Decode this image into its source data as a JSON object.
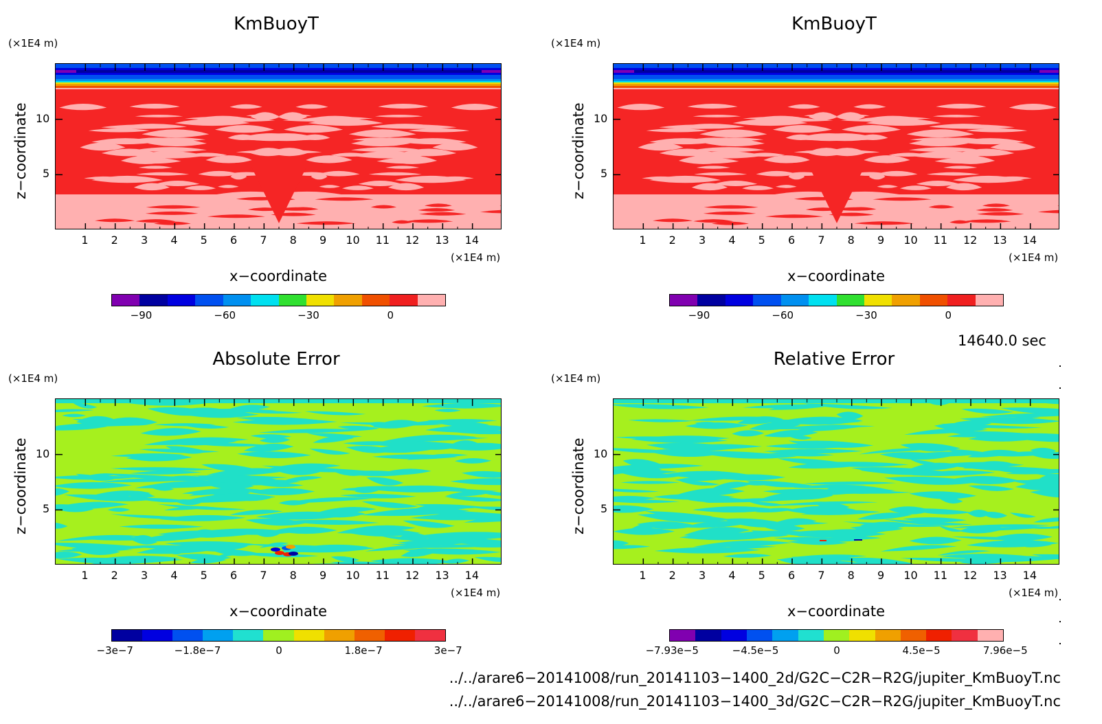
{
  "panels": [
    {
      "id": "p1",
      "title": "KmBuoyT",
      "y_unit": "(×1E4 m)",
      "x_unit": "(×1E4 m)",
      "xlabel": "x−coordinate",
      "ylabel": "z−coordinate",
      "x_ticks": [
        "1",
        "2",
        "3",
        "4",
        "5",
        "6",
        "7",
        "8",
        "9",
        "10",
        "11",
        "12",
        "13",
        "14"
      ],
      "y_ticks": [
        "5",
        "10"
      ],
      "colorbar_colors": [
        "#8000b0",
        "#0000a0",
        "#0000e0",
        "#0050f0",
        "#0090f0",
        "#00e0f0",
        "#30e030",
        "#f0e000",
        "#f0a000",
        "#f05000",
        "#f02020",
        "#ffb0b0"
      ],
      "colorbar_labels": [
        "−90",
        "−60",
        "−30",
        "0"
      ],
      "kind": "field"
    },
    {
      "id": "p2",
      "title": "KmBuoyT",
      "y_unit": "(×1E4 m)",
      "x_unit": "(×1E4 m)",
      "xlabel": "x−coordinate",
      "ylabel": "z−coordinate",
      "x_ticks": [
        "1",
        "2",
        "3",
        "4",
        "5",
        "6",
        "7",
        "8",
        "9",
        "10",
        "11",
        "12",
        "13",
        "14"
      ],
      "y_ticks": [
        "5",
        "10"
      ],
      "colorbar_colors": [
        "#8000b0",
        "#0000a0",
        "#0000e0",
        "#0050f0",
        "#0090f0",
        "#00e0f0",
        "#30e030",
        "#f0e000",
        "#f0a000",
        "#f05000",
        "#f02020",
        "#ffb0b0"
      ],
      "colorbar_labels": [
        "−90",
        "−60",
        "−30",
        "0"
      ],
      "kind": "field"
    },
    {
      "id": "p3",
      "title": "Absolute Error",
      "y_unit": "(×1E4 m)",
      "x_unit": "(×1E4 m)",
      "xlabel": "x−coordinate",
      "ylabel": "z−coordinate",
      "x_ticks": [
        "1",
        "2",
        "3",
        "4",
        "5",
        "6",
        "7",
        "8",
        "9",
        "10",
        "11",
        "12",
        "13",
        "14"
      ],
      "y_ticks": [
        "5",
        "10"
      ],
      "colorbar_colors": [
        "#0000a0",
        "#0000e0",
        "#0050f0",
        "#00a0f0",
        "#20e0d0",
        "#a0f020",
        "#f0e000",
        "#f0a000",
        "#f06000",
        "#f02000",
        "#f03040"
      ],
      "colorbar_labels": [
        "−3e−7",
        "−1.8e−7",
        "0",
        "1.8e−7",
        "3e−7"
      ],
      "kind": "error"
    },
    {
      "id": "p4",
      "title": "Relative Error",
      "y_unit": "(×1E4 m)",
      "x_unit": "(×1E4 m)",
      "xlabel": "x−coordinate",
      "ylabel": "z−coordinate",
      "x_ticks": [
        "1",
        "2",
        "3",
        "4",
        "5",
        "6",
        "7",
        "8",
        "9",
        "10",
        "11",
        "12",
        "13",
        "14"
      ],
      "y_ticks": [
        "5",
        "10"
      ],
      "colorbar_colors": [
        "#8000b0",
        "#0000a0",
        "#0000e0",
        "#0050f0",
        "#00a0f0",
        "#20e0d0",
        "#a0f020",
        "#f0e000",
        "#f0a000",
        "#f06000",
        "#f02000",
        "#f03040",
        "#ffb0b0"
      ],
      "colorbar_labels": [
        "−7.93e−5",
        "−4.5e−5",
        "0",
        "4.5e−5",
        "7.96e−5"
      ],
      "kind": "error"
    }
  ],
  "time_label": "14640.0 sec",
  "file_paths": [
    "../../arare6−20141008/run_20141103−1400_2d/G2C−C2R−R2G/jupiter_KmBuoyT.nc",
    "../../arare6−20141008/run_20141103−1400_3d/G2C−C2R−R2G/jupiter_KmBuoyT.nc"
  ],
  "chart_data": [
    {
      "type": "heatmap",
      "title": "KmBuoyT",
      "xlabel": "x−coordinate",
      "ylabel": "z−coordinate",
      "x_unit": "(×1E4 m)",
      "y_unit": "(×1E4 m)",
      "xlim": [
        0,
        15
      ],
      "ylim": [
        0,
        15
      ],
      "colorbar_ticks": [
        -90,
        -60,
        -30,
        0
      ]
    },
    {
      "type": "heatmap",
      "title": "KmBuoyT",
      "xlabel": "x−coordinate",
      "ylabel": "z−coordinate",
      "x_unit": "(×1E4 m)",
      "y_unit": "(×1E4 m)",
      "xlim": [
        0,
        15
      ],
      "ylim": [
        0,
        15
      ],
      "colorbar_ticks": [
        -90,
        -60,
        -30,
        0
      ]
    },
    {
      "type": "heatmap",
      "title": "Absolute Error",
      "xlabel": "x−coordinate",
      "ylabel": "z−coordinate",
      "x_unit": "(×1E4 m)",
      "y_unit": "(×1E4 m)",
      "xlim": [
        0,
        15
      ],
      "ylim": [
        0,
        15
      ],
      "colorbar_ticks": [
        -3e-07,
        -1.8e-07,
        0,
        1.8e-07,
        3e-07
      ]
    },
    {
      "type": "heatmap",
      "title": "Relative Error",
      "xlabel": "x−coordinate",
      "ylabel": "z−coordinate",
      "x_unit": "(×1E4 m)",
      "y_unit": "(×1E4 m)",
      "xlim": [
        0,
        15
      ],
      "ylim": [
        0,
        15
      ],
      "colorbar_ticks": [
        -7.93e-05,
        -4.5e-05,
        0,
        4.5e-05,
        7.96e-05
      ]
    }
  ]
}
